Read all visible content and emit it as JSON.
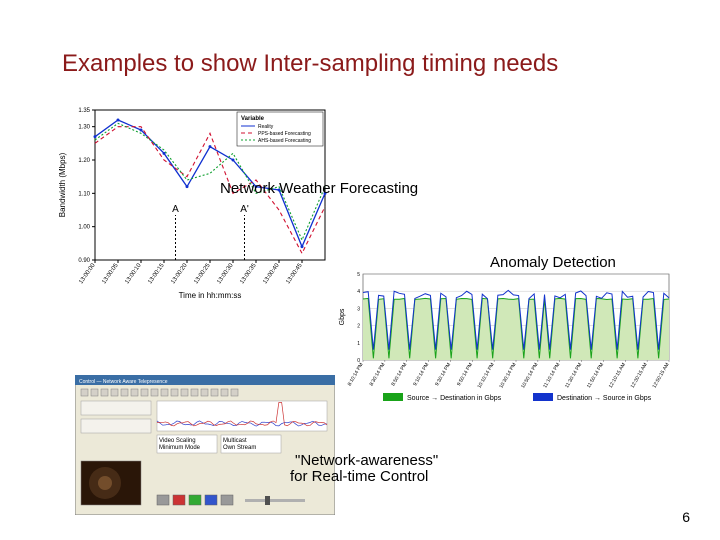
{
  "title": "Examples to show Inter-sampling timing needs",
  "page_number": "6",
  "labels": {
    "network_weather": "Network Weather Forecasting",
    "anomaly": "Anomaly Detection",
    "net_aware_l1": "\"Network-awareness\"",
    "net_aware_l2": "for Real-time Control"
  },
  "forecast_chart": {
    "type": "line",
    "title_fontsize": 10,
    "x_label": "Time in hh:mm:ss",
    "y_label": "Bandwidth (Mbps)",
    "y_label_fontsize": 8,
    "x_label_fontsize": 8,
    "xlim": [
      0,
      10
    ],
    "ylim": [
      0.9,
      1.35
    ],
    "yticks": [
      0.9,
      1.0,
      1.1,
      1.2,
      1.3,
      1.35
    ],
    "xticks": [
      "13:00:00",
      "13:00:05",
      "13:00:10",
      "13:00:15",
      "13:00:20",
      "13:00:25",
      "13:00:30",
      "13:00:35",
      "13:00:40",
      "13:00:45"
    ],
    "legend_title": "Variable",
    "legend_items": [
      "Reality",
      "PPS-based Forecasting",
      "AHS-based Forecasting"
    ],
    "legend_colors": [
      "#1030d0",
      "#d01030",
      "#10a030"
    ],
    "legend_dash": [
      "solid",
      "4 3",
      "2 2"
    ],
    "grid_color": "none",
    "axis_color": "#000000",
    "tick_fontsize": 6,
    "series": {
      "reality": {
        "color": "#1030d0",
        "dash": "none",
        "width": 1.3,
        "x": [
          0,
          1,
          2,
          3,
          4,
          5,
          6,
          7,
          8,
          9,
          10
        ],
        "y": [
          1.27,
          1.32,
          1.29,
          1.22,
          1.12,
          1.24,
          1.2,
          1.12,
          1.11,
          0.94,
          1.1
        ]
      },
      "pps": {
        "color": "#d01030",
        "dash": "4 3",
        "width": 1.1,
        "x": [
          0,
          1,
          2,
          3,
          4,
          5,
          6,
          7,
          8,
          9,
          10
        ],
        "y": [
          1.25,
          1.3,
          1.3,
          1.2,
          1.15,
          1.28,
          1.1,
          1.14,
          1.05,
          0.92,
          1.06
        ]
      },
      "ahs": {
        "color": "#10a030",
        "dash": "2 2",
        "width": 1.1,
        "x": [
          0,
          1,
          2,
          3,
          4,
          5,
          6,
          7,
          8,
          9,
          10
        ],
        "y": [
          1.26,
          1.31,
          1.28,
          1.23,
          1.14,
          1.16,
          1.22,
          1.1,
          1.12,
          0.96,
          1.12
        ]
      }
    },
    "annotations": [
      {
        "label": "A",
        "x": 3.5
      },
      {
        "label": "A'",
        "x": 6.5
      }
    ],
    "annotation_line_color": "#000000",
    "annotation_fontsize": 10
  },
  "anomaly_chart": {
    "type": "line",
    "y_label": "Gbps",
    "ylim": [
      0,
      5
    ],
    "yticks": [
      0,
      1,
      2,
      3,
      4,
      5
    ],
    "x_count": 60,
    "axis_color": "#404040",
    "grid_color": "#b8b8b8",
    "tick_fontsize": 5,
    "background_color": "#ffffff",
    "area_under_green_fill": "#d0e8b8",
    "legend": [
      {
        "label": "Source → Destination in Gbps",
        "swatch": "#19a319"
      },
      {
        "label": "Destination → Source in Gbps",
        "swatch": "#1333cc"
      }
    ],
    "legend_swatch_w": 20,
    "legend_swatch_h": 8,
    "legend_fontsize": 7,
    "series": {
      "green": {
        "color": "#19a319",
        "width": 1,
        "baseline": 3.55,
        "dips_x": [
          2,
          5,
          9,
          14,
          17,
          22,
          25,
          31,
          34,
          36,
          40,
          44,
          49,
          53,
          57
        ],
        "dip_low": 0.1
      },
      "blue": {
        "color": "#1333cc",
        "width": 1,
        "baseline": 3.8,
        "noise_amp": 0.25
      }
    },
    "x_tick_labels_sample": [
      "8:10:14 PM",
      "8:30:14 PM",
      "8:50:14 PM",
      "9:10:14 PM",
      "9:30:14 PM",
      "9:50:14 PM",
      "10:10:14 PM",
      "10:30:14 PM",
      "10:50:14 PM",
      "11:10:14 PM",
      "11:30:14 PM",
      "11:50:14 PM",
      "12:10:15 AM",
      "12:30:15 AM",
      "12:50:15 AM"
    ]
  },
  "control_panel": {
    "type": "infographic",
    "window_titlebar_color": "#3a6ea5",
    "window_border_color": "#7a7a7a",
    "window_bg": "#ece9d8",
    "window_title": "Control — Network Aware Telepresence",
    "chart_colors": {
      "series_a": "#cc3333",
      "series_b": "#3344cc"
    },
    "chart_ylim": [
      0,
      100
    ],
    "chart_baseline": 25,
    "chart_spike_x": 0.72,
    "chart_spike_y": 95,
    "boxes": [
      "Video Scaling — Minimum Mode",
      "Multicast — Own Stream"
    ],
    "box_label_fontsize": 6,
    "thumb_bg": "#2a1608",
    "button_colors": [
      "#999999",
      "#cc3333",
      "#33aa33",
      "#3355cc",
      "#999999"
    ],
    "slider_track": "#b0b0b0",
    "slider_thumb": "#505050"
  }
}
